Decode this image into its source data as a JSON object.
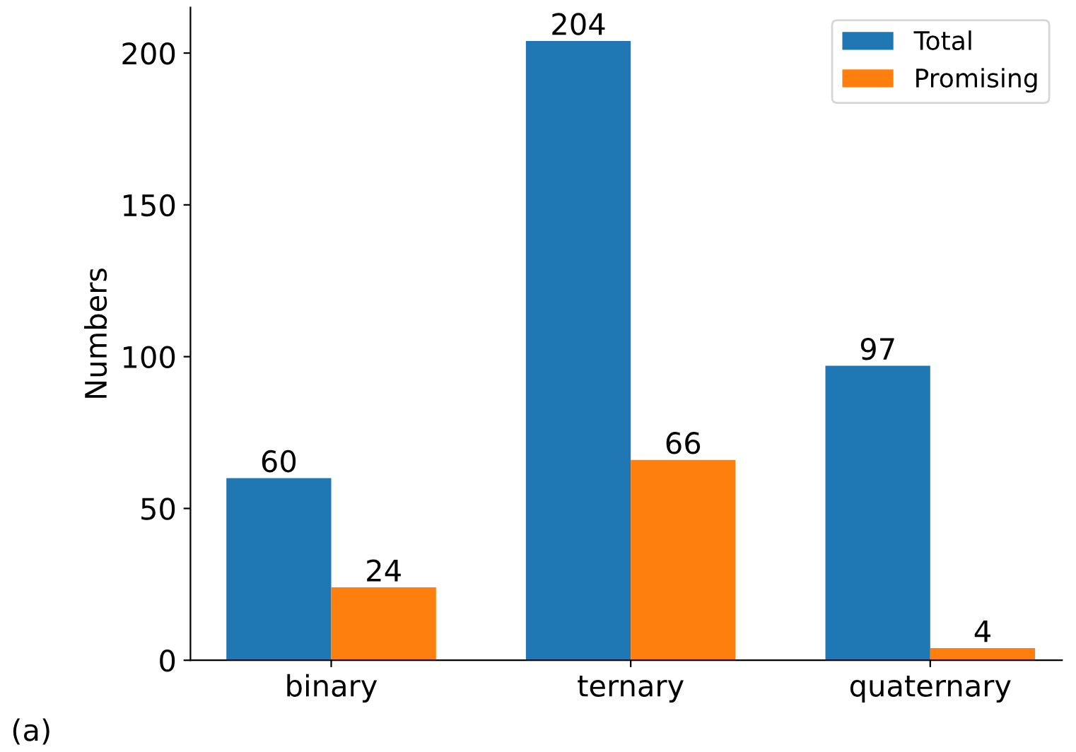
{
  "chart_data": {
    "type": "bar",
    "categories": [
      "binary",
      "ternary",
      "quaternary"
    ],
    "series": [
      {
        "name": "Total",
        "color": "#1f77b4",
        "values": [
          60,
          204,
          97
        ]
      },
      {
        "name": "Promising",
        "color": "#ff7f0e",
        "values": [
          24,
          66,
          4
        ]
      }
    ],
    "ylabel": "Numbers",
    "ylim": [
      0,
      215
    ],
    "yticks": [
      0,
      50,
      100,
      150,
      200
    ],
    "data_labels": true,
    "legend": "top right",
    "grid": false,
    "annotations": [
      "(a)"
    ]
  }
}
